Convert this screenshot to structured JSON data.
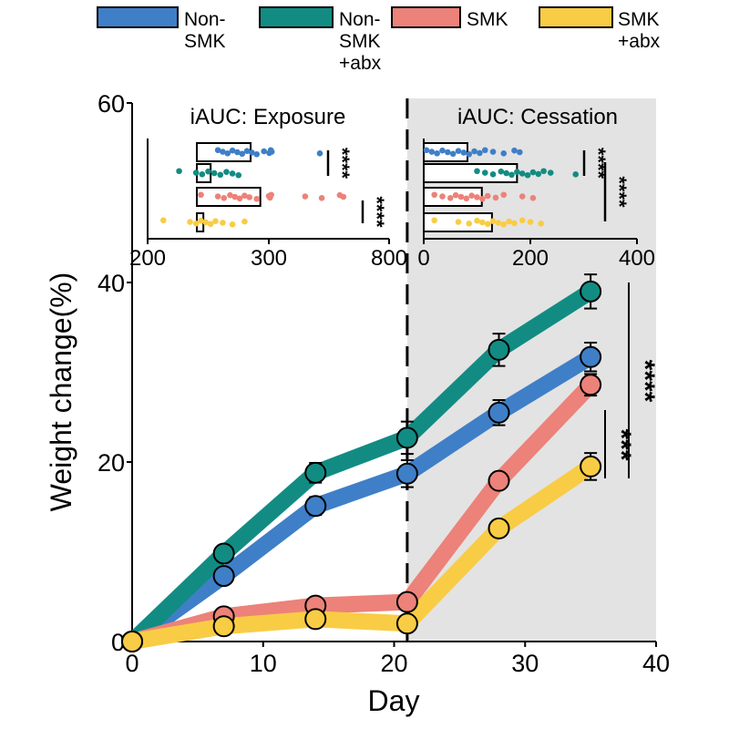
{
  "chart_data": [
    {
      "type": "line",
      "xlabel": "Day",
      "ylabel": "Weight change(%)",
      "xlim": [
        0,
        40
      ],
      "ylim": [
        0,
        60
      ],
      "xticks": [
        "0",
        "10",
        "20",
        "30",
        "40"
      ],
      "yticks": [
        "0",
        "20",
        "40",
        "60"
      ],
      "x": [
        0,
        7,
        14,
        21,
        28,
        35
      ],
      "shaded_region_x": [
        21,
        40
      ],
      "dashed_line_x": 21,
      "series": [
        {
          "name": "Non-SMK",
          "color": "#3f7fc7",
          "values": [
            0,
            7.3,
            15.1,
            18.7,
            25.5,
            31.7
          ],
          "err": [
            0,
            0.6,
            1.0,
            1.5,
            1.4,
            1.6
          ]
        },
        {
          "name": "Non-SMK +abx",
          "color": "#128c83",
          "values": [
            0,
            9.8,
            18.8,
            22.7,
            32.5,
            39.0
          ],
          "err": [
            0,
            0.6,
            1.1,
            1.8,
            1.8,
            1.9
          ]
        },
        {
          "name": "SMK",
          "color": "#ec8279",
          "values": [
            0,
            2.8,
            4.0,
            4.4,
            17.9,
            28.6
          ],
          "err": [
            0,
            0.5,
            0.6,
            0.7,
            0.8,
            1.2
          ]
        },
        {
          "name": "SMK +abx",
          "color": "#f9cc45",
          "values": [
            0,
            1.7,
            2.5,
            2.0,
            12.6,
            19.5
          ],
          "err": [
            0,
            0.5,
            0.6,
            0.9,
            0.8,
            1.5
          ]
        }
      ],
      "significance": [
        {
          "label": "****",
          "from": "Non-SMK +abx",
          "to": "SMK +abx"
        },
        {
          "label": "***",
          "from": "SMK",
          "to": "SMK +abx"
        }
      ],
      "legend": {
        "placement": "top",
        "entries": [
          "Non-SMK",
          "Non-SMK +abx",
          "SMK",
          "SMK +abx"
        ],
        "labels_wrapped": [
          [
            "Non-",
            "SMK"
          ],
          [
            "Non-",
            "SMK",
            "+abx"
          ],
          [
            "SMK"
          ],
          [
            "SMK",
            "+abx"
          ]
        ]
      }
    },
    {
      "type": "bar",
      "title": "iAUC: Exposure",
      "orientation": "horizontal",
      "xticks": [
        "200",
        "300",
        "800"
      ],
      "axis_break": true,
      "categories": [
        "Non-SMK",
        "SMK",
        "Non-SMK +abx",
        "SMK +abx"
      ],
      "values": [
        285,
        252,
        293,
        246
      ],
      "points": [
        [
          258,
          262,
          266,
          270,
          274,
          278,
          282,
          286,
          290,
          296,
          302,
          308,
          312,
          512
        ],
        [
          226,
          240,
          245,
          250,
          255,
          260,
          265,
          270,
          275
        ],
        [
          244,
          258,
          263,
          268,
          272,
          276,
          280,
          284,
          290,
          300,
          305,
          310,
          451,
          520,
          595,
          610
        ],
        [
          213,
          235,
          240,
          244,
          248,
          252,
          256,
          262,
          270,
          280
        ]
      ],
      "significance": [
        {
          "label": "****",
          "from": "Non-SMK",
          "to": "SMK"
        },
        {
          "label": "****",
          "from": "Non-SMK +abx",
          "to": "SMK +abx"
        }
      ]
    },
    {
      "type": "bar",
      "title": "iAUC: Cessation",
      "orientation": "horizontal",
      "xlim": [
        0,
        400
      ],
      "xticks": [
        "0",
        "200",
        "400"
      ],
      "categories": [
        "Non-SMK",
        "SMK",
        "Non-SMK +abx",
        "SMK +abx"
      ],
      "values": [
        82,
        175,
        109,
        128
      ],
      "points": [
        [
          5,
          15,
          25,
          35,
          45,
          55,
          65,
          75,
          85,
          95,
          105,
          115,
          130,
          150,
          170,
          180
        ],
        [
          100,
          115,
          130,
          145,
          155,
          165,
          175,
          185,
          195,
          205,
          215,
          225,
          238,
          285
        ],
        [
          20,
          35,
          50,
          60,
          70,
          80,
          90,
          100,
          110,
          120,
          135,
          150,
          185,
          205
        ],
        [
          20,
          65,
          85,
          100,
          110,
          120,
          130,
          140,
          150,
          160,
          170,
          185,
          200,
          220
        ]
      ],
      "significance": [
        {
          "label": "****",
          "from": "Non-SMK",
          "to": "SMK"
        },
        {
          "label": "****",
          "from": "Non-SMK",
          "to": "SMK +abx"
        }
      ]
    }
  ]
}
